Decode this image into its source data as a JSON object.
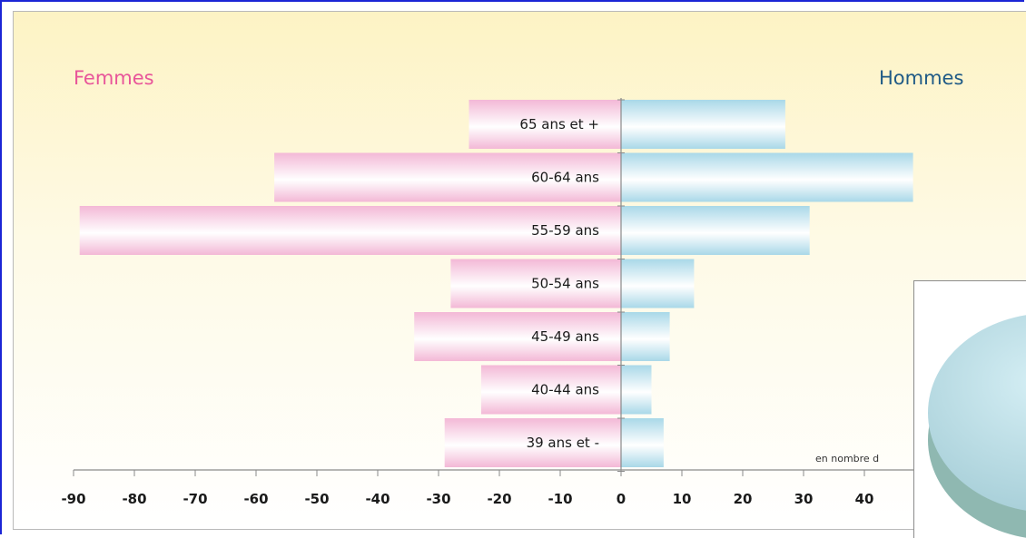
{
  "chart_data": {
    "type": "bar",
    "orientation": "horizontal",
    "style": "population-pyramid",
    "title": "",
    "left_label": "Femmes",
    "right_label": "Hommes",
    "categories": [
      "65 ans et +",
      "60-64 ans",
      "55-59 ans",
      "50-54 ans",
      "45-49 ans",
      "40-44 ans",
      "39 ans et -"
    ],
    "series": [
      {
        "name": "Femmes",
        "values": [
          -25,
          -57,
          -89,
          -28,
          -34,
          -23,
          -29
        ]
      },
      {
        "name": "Hommes",
        "values": [
          27,
          48,
          31,
          12,
          8,
          5,
          7
        ]
      }
    ],
    "xlim": [
      -90,
      50
    ],
    "x_ticks": [
      -90,
      -80,
      -70,
      -60,
      -50,
      -40,
      -30,
      -20,
      -10,
      0,
      10,
      20,
      30,
      40
    ],
    "note": "en nombre d",
    "grid": false,
    "colors": {
      "femmes": "#f6c9e0",
      "hommes": "#bfe3ee",
      "femmes_label": "#e8559a",
      "hommes_label": "#1f5a86"
    }
  }
}
